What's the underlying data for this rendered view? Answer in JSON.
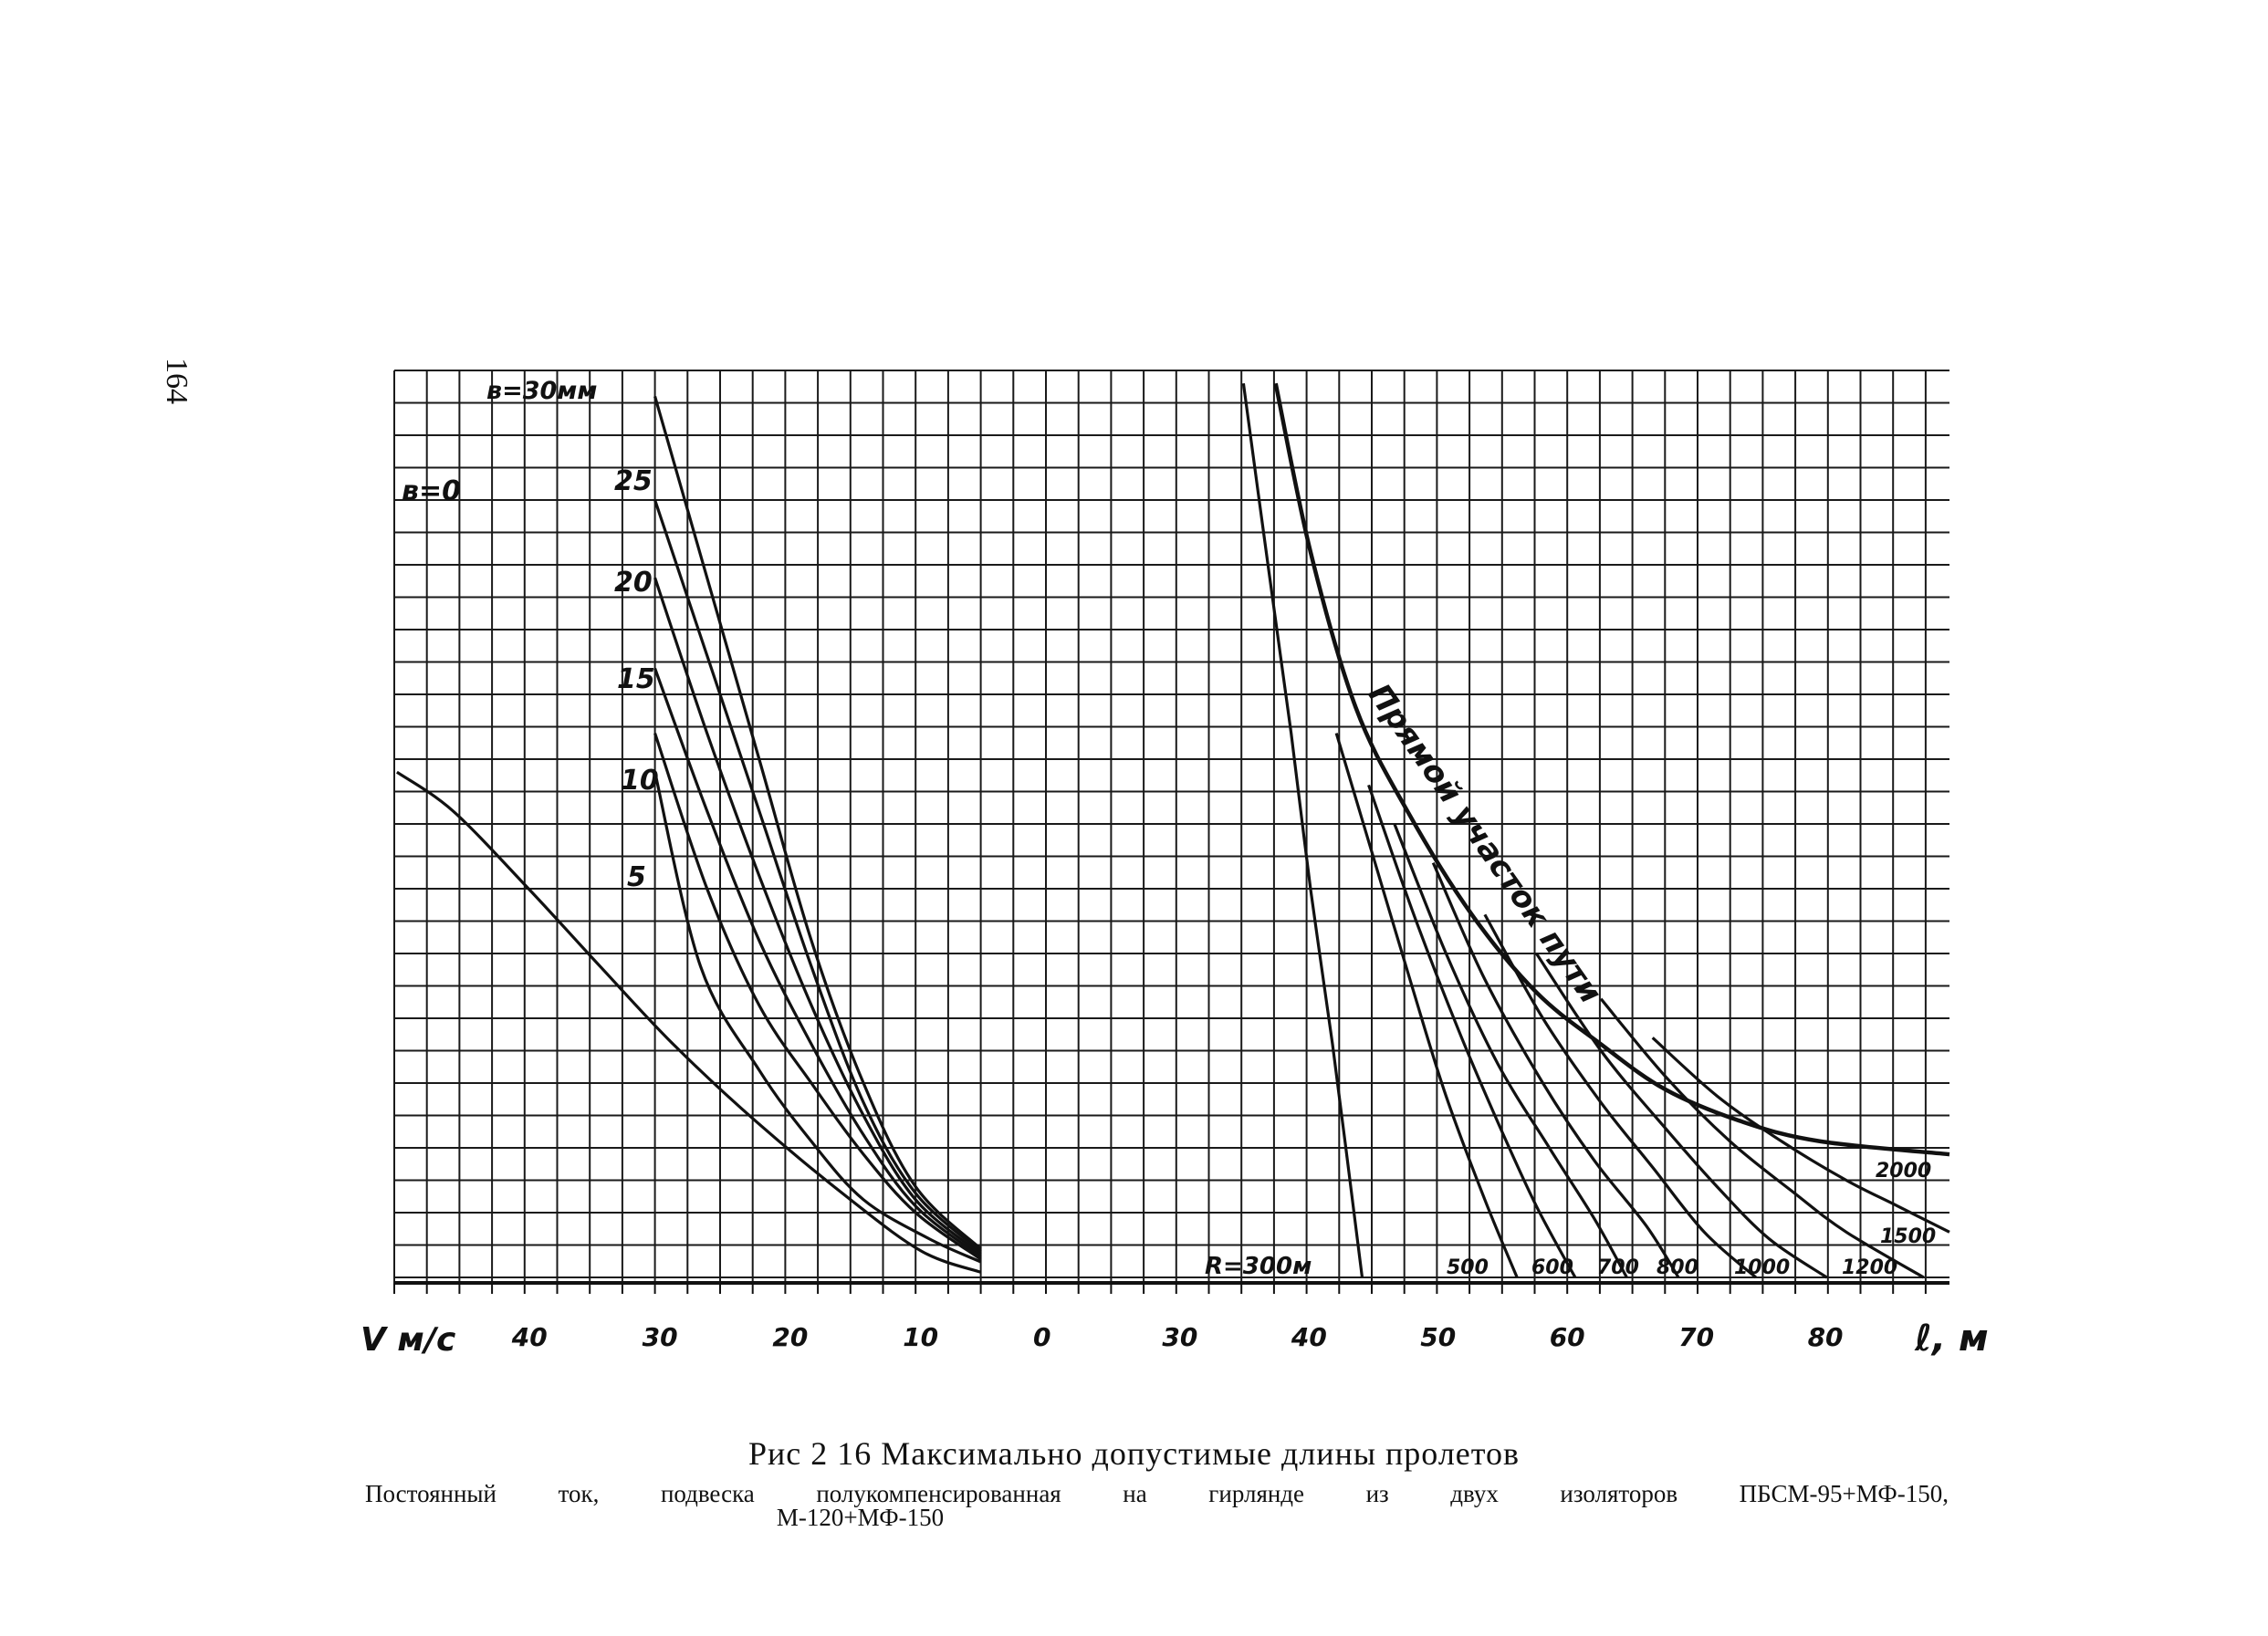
{
  "page_number": "164",
  "caption": {
    "title": "Рис 2 16 Максимально допустимые длины пролетов",
    "line1": [
      "Постоянный",
      "ток,",
      "подвеска",
      "полукомпенсированная",
      "на",
      "гирлянде",
      "из",
      "двух",
      "изоляторов",
      "ПБСМ-95+МФ-150,"
    ],
    "line2": "М-120+МФ-150"
  },
  "chart_data": {
    "type": "line",
    "title": "",
    "colors": {
      "ink": "#111111",
      "grid": "#1a1a1a"
    },
    "grid": true,
    "left_panel": {
      "xlabel": "V м/с",
      "x_ticks": [
        "40",
        "30",
        "20",
        "10",
        "0"
      ],
      "x_values": [
        40,
        30,
        20,
        10,
        0
      ],
      "xlim": [
        50,
        0
      ],
      "param_label_top": "в=30мм",
      "param_label_zero": "в=0",
      "param_labels": [
        "25",
        "20",
        "15",
        "10",
        "5"
      ],
      "series": [
        {
          "name": "в=0",
          "points": [
            [
              49.8,
              390
            ],
            [
              45.5,
              360
            ],
            [
              39.7,
              300
            ],
            [
              34.2,
              240
            ],
            [
              28.6,
              180
            ],
            [
              22.2,
              120
            ],
            [
              15,
              60
            ],
            [
              9.5,
              20
            ],
            [
              5,
              4
            ]
          ]
        },
        {
          "name": "5",
          "points": [
            [
              30,
              390
            ],
            [
              26.5,
              240
            ],
            [
              22,
              160
            ],
            [
              18,
              105
            ],
            [
              14,
              60
            ],
            [
              9,
              30
            ],
            [
              5,
              12
            ]
          ]
        },
        {
          "name": "10",
          "points": [
            [
              30,
              420
            ],
            [
              26,
              300
            ],
            [
              22,
              210
            ],
            [
              18,
              150
            ],
            [
              14,
              95
            ],
            [
              10,
              50
            ],
            [
              5,
              14
            ]
          ]
        },
        {
          "name": "15",
          "points": [
            [
              30,
              470
            ],
            [
              26,
              360
            ],
            [
              22,
              260
            ],
            [
              18,
              180
            ],
            [
              14,
              110
            ],
            [
              10,
              55
            ],
            [
              5,
              16
            ]
          ]
        },
        {
          "name": "20",
          "points": [
            [
              30,
              540
            ],
            [
              26,
              420
            ],
            [
              22,
              310
            ],
            [
              18,
              210
            ],
            [
              14,
              125
            ],
            [
              10,
              60
            ],
            [
              5,
              18
            ]
          ]
        },
        {
          "name": "25",
          "points": [
            [
              30,
              600
            ],
            [
              26,
              480
            ],
            [
              22,
              360
            ],
            [
              18,
              240
            ],
            [
              14,
              135
            ],
            [
              10,
              65
            ],
            [
              5,
              20
            ]
          ]
        },
        {
          "name": "в=30мм",
          "points": [
            [
              30,
              680
            ],
            [
              26,
              540
            ],
            [
              22,
              400
            ],
            [
              18,
              260
            ],
            [
              14,
              150
            ],
            [
              10,
              70
            ],
            [
              5,
              22
            ]
          ]
        }
      ]
    },
    "right_panel": {
      "xlabel": "ℓ, м",
      "x_ticks": [
        "30",
        "40",
        "50",
        "60",
        "70",
        "80"
      ],
      "x_values": [
        30,
        40,
        50,
        60,
        70,
        80
      ],
      "xlim": [
        20,
        90
      ],
      "curve_label": "Прямой участок пути",
      "radius_labels": [
        "R=300м",
        "500",
        "600",
        "700",
        "800",
        "1000",
        "1200",
        "1500",
        "2000"
      ],
      "series": [
        {
          "name": "R=300м",
          "points": [
            [
              35.3,
              690
            ],
            [
              37.2,
              550
            ],
            [
              39,
              420
            ],
            [
              40.5,
              300
            ],
            [
              42.2,
              180
            ],
            [
              44.5,
              0
            ]
          ]
        },
        {
          "name": "500",
          "points": [
            [
              42.5,
              420
            ],
            [
              45.5,
              320
            ],
            [
              48.5,
              220
            ],
            [
              51,
              140
            ],
            [
              54,
              60
            ],
            [
              56.5,
              0
            ]
          ]
        },
        {
          "name": "600",
          "points": [
            [
              45,
              380
            ],
            [
              48.5,
              280
            ],
            [
              52,
              190
            ],
            [
              55,
              120
            ],
            [
              58,
              55
            ],
            [
              61,
              0
            ]
          ]
        },
        {
          "name": "700",
          "points": [
            [
              47,
              350
            ],
            [
              51,
              250
            ],
            [
              55,
              165
            ],
            [
              59,
              100
            ],
            [
              62.5,
              45
            ],
            [
              65,
              0
            ]
          ]
        },
        {
          "name": "800",
          "points": [
            [
              50,
              320
            ],
            [
              54,
              230
            ],
            [
              58.5,
              150
            ],
            [
              62.5,
              90
            ],
            [
              66.5,
              40
            ],
            [
              69,
              0
            ]
          ]
        },
        {
          "name": "1000",
          "points": [
            [
              54,
              280
            ],
            [
              58.5,
              200
            ],
            [
              63,
              135
            ],
            [
              67,
              85
            ],
            [
              71,
              35
            ],
            [
              75,
              0
            ]
          ]
        },
        {
          "name": "1200",
          "points": [
            [
              58,
              250
            ],
            [
              63,
              175
            ],
            [
              68,
              115
            ],
            [
              72,
              70
            ],
            [
              76,
              30
            ],
            [
              80.5,
              0
            ]
          ]
        },
        {
          "name": "1500",
          "points": [
            [
              63,
              215
            ],
            [
              68,
              155
            ],
            [
              73,
              105
            ],
            [
              78,
              65
            ],
            [
              82,
              35
            ],
            [
              88,
              0
            ]
          ]
        },
        {
          "name": "2000",
          "points": [
            [
              67,
              185
            ],
            [
              72,
              140
            ],
            [
              77,
              105
            ],
            [
              82,
              75
            ],
            [
              86,
              55
            ],
            [
              90,
              35
            ]
          ]
        },
        {
          "name": "Прямой участок пути",
          "points": [
            [
              37.8,
              690
            ],
            [
              40.5,
              560
            ],
            [
              44,
              440
            ],
            [
              48,
              360
            ],
            [
              53,
              280
            ],
            [
              58,
              220
            ],
            [
              63,
              180
            ],
            [
              68,
              145
            ],
            [
              74,
              120
            ],
            [
              80,
              105
            ],
            [
              90,
              95
            ]
          ]
        }
      ]
    }
  }
}
